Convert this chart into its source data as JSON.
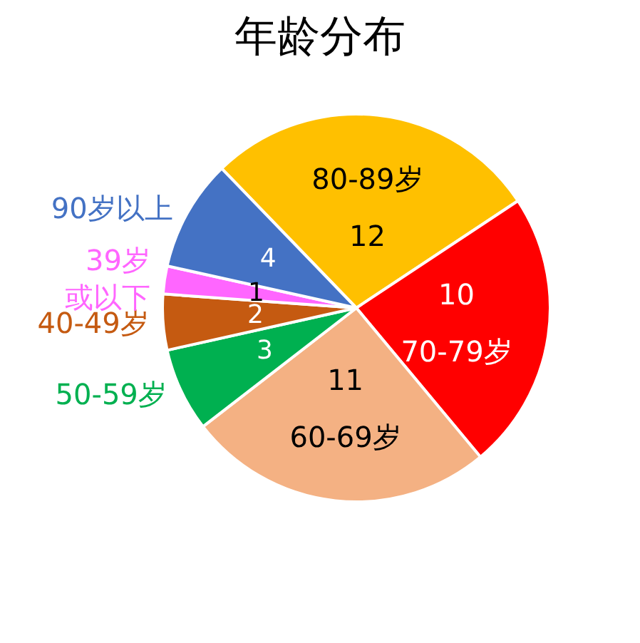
{
  "chart_data": {
    "type": "pie",
    "title": "年龄分布",
    "categories": [
      "80-89岁",
      "70-79岁",
      "60-69岁",
      "50-59岁",
      "40-49岁",
      "39岁或以下",
      "90岁以上"
    ],
    "values": [
      12,
      10,
      11,
      3,
      2,
      1,
      4
    ],
    "colors": [
      "#ffc000",
      "#ff0000",
      "#f4b183",
      "#00b050",
      "#c55a11",
      "#ff66ff",
      "#4472c4"
    ],
    "data_labels": true
  }
}
